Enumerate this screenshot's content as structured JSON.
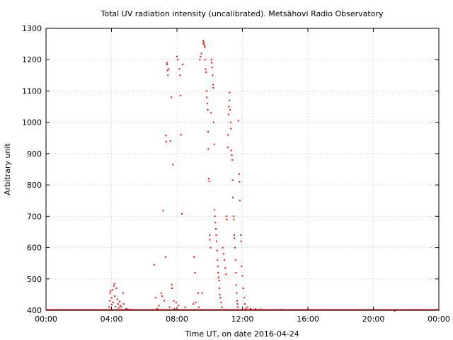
{
  "chart_data": {
    "type": "scatter",
    "title": "Total UV radiation intensity (uncalibrated). Metsähovi Radio Observatory",
    "xlabel": "Time UT, on date 2016-04-24",
    "ylabel": "Arbitrary unit",
    "x_unit": "hours UT",
    "xlim": [
      0,
      24
    ],
    "ylim": [
      400,
      1300
    ],
    "x_ticks": [
      {
        "value": 0,
        "label": "00:00"
      },
      {
        "value": 4,
        "label": "04:00"
      },
      {
        "value": 8,
        "label": "08:00"
      },
      {
        "value": 12,
        "label": "12:00"
      },
      {
        "value": 16,
        "label": "16:00"
      },
      {
        "value": 20,
        "label": "20:00"
      },
      {
        "value": 24,
        "label": "00:00"
      }
    ],
    "y_ticks": [
      400,
      500,
      600,
      700,
      800,
      900,
      1000,
      1100,
      1200,
      1300
    ],
    "grid": true,
    "series_color": "#ff0000",
    "baseline": {
      "value": 401,
      "x_range": [
        0,
        24
      ]
    },
    "points": [
      [
        3.85,
        410
      ],
      [
        3.9,
        430
      ],
      [
        3.92,
        455
      ],
      [
        3.95,
        462
      ],
      [
        4.0,
        440
      ],
      [
        4.02,
        418
      ],
      [
        4.08,
        465
      ],
      [
        4.1,
        425
      ],
      [
        4.15,
        478
      ],
      [
        4.18,
        485
      ],
      [
        4.2,
        445
      ],
      [
        4.25,
        412
      ],
      [
        4.3,
        470
      ],
      [
        4.35,
        435
      ],
      [
        4.4,
        420
      ],
      [
        4.45,
        408
      ],
      [
        4.5,
        428
      ],
      [
        4.55,
        415
      ],
      [
        4.6,
        410
      ],
      [
        4.7,
        455
      ],
      [
        4.75,
        420
      ],
      [
        4.9,
        405
      ],
      [
        5.0,
        403
      ],
      [
        5.2,
        402
      ],
      [
        6.6,
        545
      ],
      [
        6.7,
        440
      ],
      [
        6.8,
        405
      ],
      [
        6.9,
        415
      ],
      [
        7.05,
        455
      ],
      [
        7.1,
        445
      ],
      [
        7.15,
        718
      ],
      [
        7.22,
        430
      ],
      [
        7.3,
        570
      ],
      [
        7.32,
        958
      ],
      [
        7.35,
        938
      ],
      [
        7.38,
        1190
      ],
      [
        7.4,
        1185
      ],
      [
        7.42,
        1165
      ],
      [
        7.45,
        1150
      ],
      [
        7.5,
        1170
      ],
      [
        7.55,
        410
      ],
      [
        7.6,
        940
      ],
      [
        7.65,
        1080
      ],
      [
        7.68,
        482
      ],
      [
        7.7,
        470
      ],
      [
        7.75,
        865
      ],
      [
        7.8,
        430
      ],
      [
        7.85,
        405
      ],
      [
        7.95,
        425
      ],
      [
        8.0,
        1210
      ],
      [
        8.05,
        1200
      ],
      [
        8.1,
        415
      ],
      [
        8.15,
        1170
      ],
      [
        8.2,
        1150
      ],
      [
        8.22,
        1085
      ],
      [
        8.25,
        960
      ],
      [
        8.3,
        708
      ],
      [
        8.35,
        1185
      ],
      [
        8.5,
        410
      ],
      [
        9.0,
        420
      ],
      [
        9.05,
        570
      ],
      [
        9.1,
        520
      ],
      [
        9.15,
        425
      ],
      [
        9.3,
        455
      ],
      [
        9.35,
        410
      ],
      [
        9.4,
        1200
      ],
      [
        9.45,
        1210
      ],
      [
        9.5,
        1220
      ],
      [
        9.55,
        455
      ],
      [
        9.6,
        1260
      ],
      [
        9.62,
        1250
      ],
      [
        9.65,
        1255
      ],
      [
        9.68,
        1245
      ],
      [
        9.7,
        1240
      ],
      [
        9.72,
        1200
      ],
      [
        9.75,
        1170
      ],
      [
        9.78,
        1160
      ],
      [
        9.8,
        1100
      ],
      [
        9.82,
        1080
      ],
      [
        9.85,
        1060
      ],
      [
        9.88,
        1040
      ],
      [
        9.9,
        970
      ],
      [
        9.92,
        915
      ],
      [
        9.95,
        820
      ],
      [
        9.97,
        812
      ],
      [
        10.0,
        640
      ],
      [
        10.02,
        625
      ],
      [
        10.05,
        600
      ],
      [
        10.08,
        1030
      ],
      [
        10.1,
        1200
      ],
      [
        10.12,
        1190
      ],
      [
        10.15,
        1175
      ],
      [
        10.18,
        1150
      ],
      [
        10.2,
        1120
      ],
      [
        10.22,
        1110
      ],
      [
        10.25,
        1000
      ],
      [
        10.28,
        930
      ],
      [
        10.3,
        720
      ],
      [
        10.32,
        700
      ],
      [
        10.35,
        680
      ],
      [
        10.38,
        660
      ],
      [
        10.4,
        640
      ],
      [
        10.42,
        620
      ],
      [
        10.45,
        590
      ],
      [
        10.48,
        560
      ],
      [
        10.5,
        540
      ],
      [
        10.52,
        520
      ],
      [
        10.55,
        505
      ],
      [
        10.58,
        495
      ],
      [
        10.6,
        470
      ],
      [
        10.62,
        450
      ],
      [
        10.65,
        440
      ],
      [
        10.7,
        425
      ],
      [
        10.75,
        410
      ],
      [
        10.8,
        600
      ],
      [
        10.85,
        580
      ],
      [
        10.9,
        560
      ],
      [
        10.95,
        535
      ],
      [
        11.0,
        515
      ],
      [
        11.02,
        700
      ],
      [
        11.05,
        690
      ],
      [
        11.1,
        920
      ],
      [
        11.12,
        960
      ],
      [
        11.15,
        1025
      ],
      [
        11.18,
        1050
      ],
      [
        11.2,
        1070
      ],
      [
        11.22,
        1095
      ],
      [
        11.25,
        1040
      ],
      [
        11.28,
        1000
      ],
      [
        11.3,
        980
      ],
      [
        11.32,
        910
      ],
      [
        11.35,
        895
      ],
      [
        11.38,
        880
      ],
      [
        11.4,
        815
      ],
      [
        11.42,
        760
      ],
      [
        11.45,
        700
      ],
      [
        11.48,
        690
      ],
      [
        11.5,
        640
      ],
      [
        11.52,
        630
      ],
      [
        11.55,
        600
      ],
      [
        11.58,
        560
      ],
      [
        11.6,
        520
      ],
      [
        11.62,
        480
      ],
      [
        11.65,
        455
      ],
      [
        11.68,
        430
      ],
      [
        11.7,
        420
      ],
      [
        11.72,
        410
      ],
      [
        11.75,
        1005
      ],
      [
        11.8,
        835
      ],
      [
        11.82,
        810
      ],
      [
        11.85,
        750
      ],
      [
        11.9,
        640
      ],
      [
        11.92,
        620
      ],
      [
        11.95,
        540
      ],
      [
        12.0,
        510
      ],
      [
        12.05,
        470
      ],
      [
        12.1,
        440
      ],
      [
        12.15,
        420
      ],
      [
        12.2,
        405
      ],
      [
        12.3,
        410
      ],
      [
        12.5,
        405
      ],
      [
        12.8,
        404
      ],
      [
        13.1,
        403
      ],
      [
        14.4,
        402
      ],
      [
        16.9,
        402
      ],
      [
        21.3,
        398
      ]
    ]
  }
}
